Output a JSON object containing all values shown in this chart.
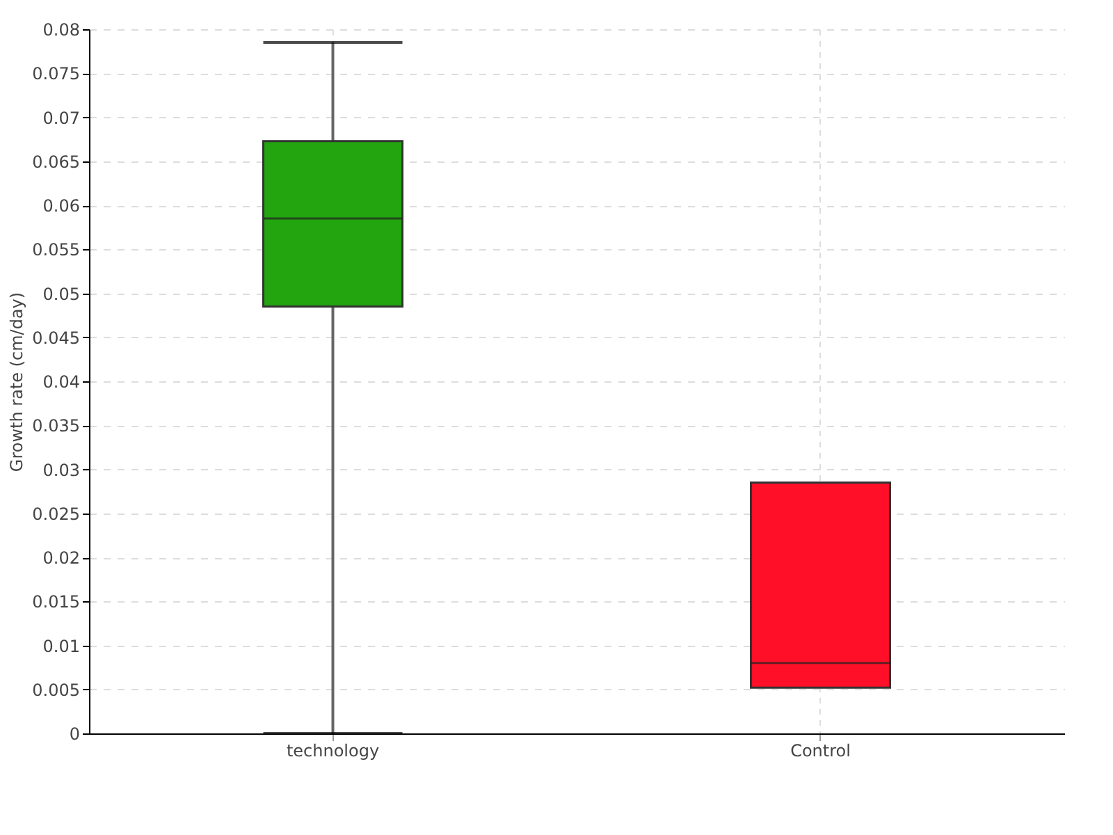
{
  "chart_data": {
    "type": "box",
    "ylabel": "Growth rate (cm/day)",
    "categories": [
      "technology",
      "Control"
    ],
    "boxes": [
      {
        "low": 0,
        "q1": 0.0485,
        "median": 0.0585,
        "q3": 0.0673,
        "high": 0.0785
      },
      {
        "low": 0.0052,
        "q1": 0.0052,
        "median": 0.008,
        "q3": 0.0285,
        "high": 0.0285
      }
    ],
    "colors": [
      "#22a50f",
      "#ff0f28"
    ],
    "ylim": [
      0,
      0.08
    ],
    "yticks": [
      0,
      0.005,
      0.01,
      0.015,
      0.02,
      0.025,
      0.03,
      0.035,
      0.04,
      0.045,
      0.05,
      0.055,
      0.06,
      0.065,
      0.07,
      0.075,
      0.08
    ],
    "grid": true
  }
}
